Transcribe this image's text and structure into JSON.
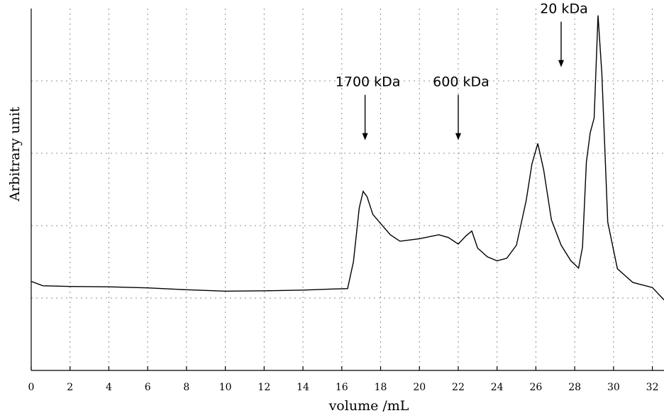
{
  "chart_data": {
    "type": "line",
    "title": "",
    "xlabel": "volume /mL",
    "ylabel": "Arbitrary unit",
    "xlim": [
      0,
      32.6
    ],
    "ylim": [
      0,
      1
    ],
    "grid": true,
    "xticks": [
      "0",
      "2",
      "4",
      "6",
      "8",
      "10",
      "12",
      "14",
      "16",
      "18",
      "20",
      "22",
      "24",
      "26",
      "28",
      "30",
      "32"
    ],
    "annotations": [
      {
        "text": "1700 kDa",
        "x": 17.2,
        "y": 0.636
      },
      {
        "text": "600 kDa",
        "x": 22.0,
        "y": 0.636
      },
      {
        "text": "20 kDa",
        "x": 27.3,
        "y": 0.838
      }
    ],
    "series": [
      {
        "x": [
          0,
          0.6,
          2,
          4,
          6,
          8,
          10,
          12,
          14,
          15.5,
          16.3,
          16.6,
          16.9,
          17.1,
          17.3,
          17.6,
          18.0,
          18.5,
          19.0,
          20.0,
          21.0,
          21.5,
          22.0,
          22.4,
          22.7,
          23.0,
          23.5,
          24.0,
          24.5,
          25.0,
          25.5,
          25.8,
          26.1,
          26.4,
          26.8,
          27.3,
          27.8,
          28.2,
          28.4,
          28.6,
          28.8,
          29.0,
          29.2,
          29.4,
          29.7,
          30.2,
          31.0,
          32.0,
          32.6
        ],
        "y": [
          0.246,
          0.234,
          0.232,
          0.231,
          0.228,
          0.223,
          0.219,
          0.22,
          0.222,
          0.225,
          0.226,
          0.3,
          0.449,
          0.495,
          0.48,
          0.431,
          0.406,
          0.375,
          0.357,
          0.364,
          0.375,
          0.367,
          0.349,
          0.372,
          0.385,
          0.338,
          0.314,
          0.303,
          0.31,
          0.346,
          0.469,
          0.571,
          0.627,
          0.554,
          0.416,
          0.346,
          0.303,
          0.283,
          0.34,
          0.576,
          0.657,
          0.697,
          0.981,
          0.82,
          0.41,
          0.281,
          0.243,
          0.229,
          0.195
        ]
      }
    ]
  }
}
